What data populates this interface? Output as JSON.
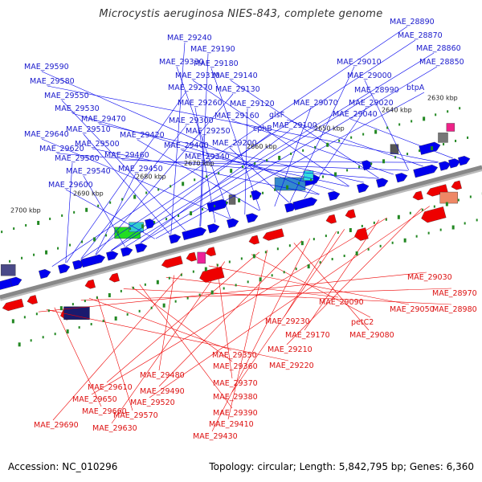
{
  "title": "Microcystis aeruginosa NIES-843, complete genome",
  "footer": {
    "accession": "Accession: NC_010296",
    "summary": "Topology: circular; Length: 5,842,795 bp; Genes: 6,360"
  },
  "colors": {
    "forward_gene": "#0000ee",
    "reverse_gene": "#ee0000",
    "forward_label": "#1a1acc",
    "reverse_label": "#dd1111",
    "axis": "#888888",
    "tick": "#228822"
  },
  "scale_ticks": [
    "2630 kbp",
    "2640 kbp",
    "2650 kbp",
    "2660 kbp",
    "2670 kbp",
    "2680 kbp",
    "2690 kbp",
    "2700 kbp"
  ],
  "forward_labels": [
    "MAE_28890",
    "MAE_28870",
    "MAE_28860",
    "MAE_28850",
    "MAE_29240",
    "MAE_29190",
    "MAE_29330",
    "MAE_29180",
    "MAE_29010",
    "MAE_29590",
    "MAE_29310",
    "MAE_29140",
    "MAE_29000",
    "MAE_29580",
    "MAE_29270",
    "MAE_29130",
    "MAE_28990",
    "btpA",
    "MAE_29550",
    "MAE_29260",
    "MAE_29120",
    "MAE_29070",
    "MAE_29020",
    "MAE_29530",
    "MAE_29470",
    "MAE_29160",
    "glsF",
    "MAE_29040",
    "MAE_29300",
    "cphB",
    "MAE_29100",
    "MAE_29510",
    "MAE_29250",
    "MAE_29640",
    "MAE_29420",
    "MAE_29200",
    "MAE_29500",
    "MAE_29400",
    "MAE_29620",
    "MAE_29460",
    "MAE_29340",
    "MAE_29560",
    "MAE_29450",
    "MAE_29540",
    "MAE_29600"
  ],
  "reverse_labels": [
    "MAE_29030",
    "MAE_28970",
    "MAE_28980",
    "MAE_29090",
    "MAE_29050",
    "petC2",
    "MAE_29080",
    "MAE_29230",
    "MAE_29170",
    "MAE_29210",
    "MAE_29220",
    "MAE_29350",
    "MAE_29360",
    "MAE_29480",
    "MAE_29370",
    "MAE_29610",
    "MAE_29490",
    "MAE_29380",
    "MAE_29650",
    "MAE_29520",
    "MAE_29660",
    "MAE_29570",
    "MAE_29390",
    "MAE_29690",
    "MAE_29630",
    "MAE_29410",
    "MAE_29430"
  ]
}
